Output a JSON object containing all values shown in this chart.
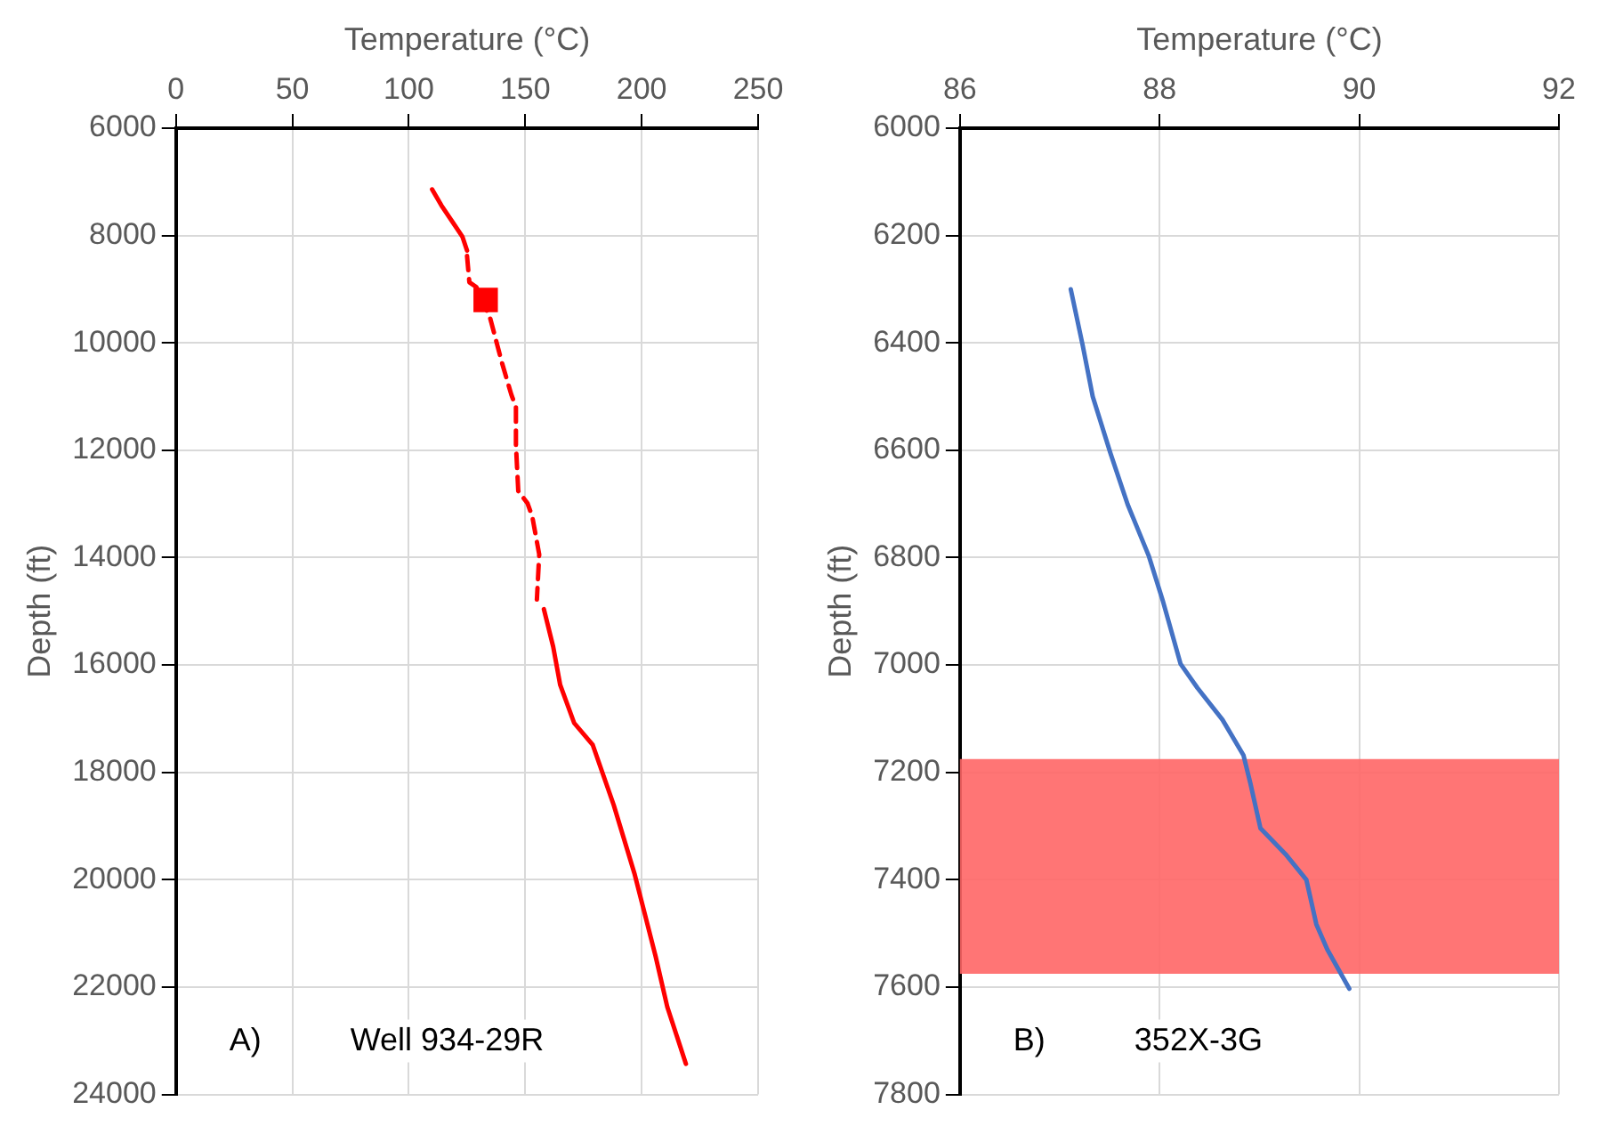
{
  "chart_data": [
    {
      "type": "line",
      "xlabel": "Temperature (°C)",
      "ylabel": "Depth (ft)",
      "xlim": [
        0,
        250
      ],
      "xticks": [
        0,
        50,
        100,
        150,
        200,
        250
      ],
      "ylim": [
        24000,
        6000
      ],
      "yticks": [
        6000,
        8000,
        10000,
        12000,
        14000,
        16000,
        18000,
        20000,
        22000,
        24000
      ],
      "grid": true,
      "annotations": [
        "A)",
        "Well 934-29R"
      ],
      "series": [
        {
          "type": "line",
          "color": "#ff0000",
          "line_style": "solid",
          "x": [
            110,
            114,
            123,
            125
          ],
          "values": [
            7140,
            7440,
            8020,
            8280
          ]
        },
        {
          "type": "line",
          "color": "#ff0000",
          "line_style": "dashed",
          "x": [
            125,
            126,
            129,
            135,
            140,
            144,
            146,
            146,
            147,
            151,
            153,
            156,
            155
          ],
          "values": [
            8380,
            8870,
            8960,
            9550,
            10370,
            10960,
            11200,
            11900,
            12760,
            12990,
            13230,
            13940,
            14780
          ]
        },
        {
          "type": "line",
          "color": "#ff0000",
          "line_style": "solid",
          "x": [
            158,
            162,
            165,
            171,
            179,
            188,
            197,
            206,
            211,
            219
          ],
          "values": [
            14960,
            15660,
            16370,
            17080,
            17490,
            18610,
            19900,
            21430,
            22370,
            23430
          ]
        },
        {
          "type": "scatter",
          "color": "#ff0000",
          "marker": "square",
          "x": [
            133
          ],
          "values": [
            9200
          ]
        }
      ]
    },
    {
      "type": "line",
      "xlabel": "Temperature (°C)",
      "ylabel": "Depth (ft)",
      "xlim": [
        86,
        92
      ],
      "xticks": [
        86,
        88,
        90,
        92
      ],
      "ylim": [
        7800,
        6000
      ],
      "yticks": [
        6000,
        6200,
        6400,
        6600,
        6800,
        7000,
        7200,
        7400,
        7600,
        7800
      ],
      "grid": true,
      "annotations": [
        "B)",
        "352X-3G"
      ],
      "bands": [
        {
          "axis": "y",
          "from": 7175,
          "to": 7575,
          "color": "#ff6666"
        }
      ],
      "series": [
        {
          "type": "line",
          "color": "#4472c4",
          "line_style": "solid",
          "x": [
            87.11,
            87.23,
            87.33,
            87.51,
            87.68,
            87.89,
            88.03,
            88.21,
            88.38,
            88.63,
            88.84,
            88.91,
            89.01,
            89.26,
            89.47,
            89.57,
            89.68,
            89.9
          ],
          "values": [
            6300,
            6405,
            6500,
            6607,
            6701,
            6796,
            6879,
            6998,
            7043,
            7102,
            7168,
            7221,
            7304,
            7352,
            7400,
            7483,
            7530,
            7603
          ]
        }
      ]
    }
  ]
}
